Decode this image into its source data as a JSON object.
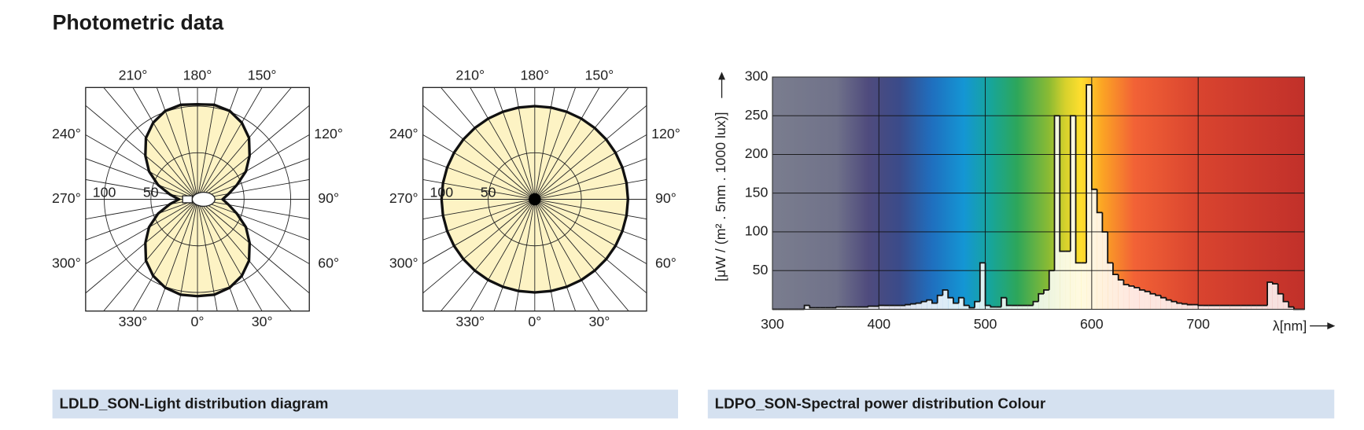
{
  "header": {
    "title": "Photometric data"
  },
  "captions": [
    "LDLD_SON-Light distribution diagram",
    "LDPO_SON-Spectral power distribution Colour"
  ],
  "chart_data": [
    {
      "type": "polar",
      "fill": "#fdf3c4",
      "color": "#111111",
      "rlim": [
        0,
        120
      ],
      "rticks": [
        50,
        100
      ],
      "angle_ticks": [
        {
          "value": 0,
          "label": "0°"
        },
        {
          "value": 30,
          "label": "30°"
        },
        {
          "value": 60,
          "label": "60°"
        },
        {
          "value": 90,
          "label": "90°"
        },
        {
          "value": 120,
          "label": "120°"
        },
        {
          "value": 150,
          "label": "150°"
        },
        {
          "value": 180,
          "label": "180°"
        },
        {
          "value": 210,
          "label": "210°"
        },
        {
          "value": 240,
          "label": "240°"
        },
        {
          "value": 270,
          "label": "270°"
        },
        {
          "value": 300,
          "label": "300°"
        },
        {
          "value": 330,
          "label": "330°"
        }
      ],
      "angles": [
        0,
        10,
        20,
        30,
        40,
        50,
        60,
        70,
        80,
        90,
        100,
        110,
        120,
        130,
        140,
        150,
        160,
        170,
        180,
        190,
        200,
        210,
        220,
        230,
        240,
        250,
        260,
        270,
        280,
        290,
        300,
        310,
        320,
        330,
        340,
        350
      ],
      "values": [
        104,
        104,
        101,
        95,
        86,
        73,
        60,
        45,
        34,
        27,
        34,
        45,
        60,
        73,
        86,
        95,
        101,
        103,
        102,
        103,
        101,
        95,
        86,
        73,
        60,
        45,
        30,
        20,
        30,
        45,
        60,
        73,
        86,
        95,
        101,
        104
      ]
    },
    {
      "type": "polar",
      "fill": "#fdf3c4",
      "color": "#111111",
      "rlim": [
        0,
        120
      ],
      "rticks": [
        50,
        100
      ],
      "angle_ticks": [
        {
          "value": 0,
          "label": "0°"
        },
        {
          "value": 30,
          "label": "30°"
        },
        {
          "value": 60,
          "label": "60°"
        },
        {
          "value": 90,
          "label": "90°"
        },
        {
          "value": 120,
          "label": "120°"
        },
        {
          "value": 150,
          "label": "150°"
        },
        {
          "value": 180,
          "label": "180°"
        },
        {
          "value": 210,
          "label": "210°"
        },
        {
          "value": 240,
          "label": "240°"
        },
        {
          "value": 270,
          "label": "270°"
        },
        {
          "value": 300,
          "label": "300°"
        },
        {
          "value": 330,
          "label": "330°"
        }
      ],
      "angles": [
        0,
        10,
        20,
        30,
        40,
        50,
        60,
        70,
        80,
        90,
        100,
        110,
        120,
        130,
        140,
        150,
        160,
        170,
        180,
        190,
        200,
        210,
        220,
        230,
        240,
        250,
        260,
        270,
        280,
        290,
        300,
        310,
        320,
        330,
        340,
        350
      ],
      "values": [
        100,
        100,
        100,
        100,
        100,
        100,
        100,
        100,
        100,
        100,
        100,
        100,
        100,
        100,
        100,
        100,
        100,
        100,
        100,
        100,
        100,
        100,
        100,
        100,
        100,
        100,
        100,
        100,
        100,
        100,
        100,
        100,
        100,
        100,
        100,
        100
      ]
    },
    {
      "type": "area",
      "ylabel": "[μW / (m² . 5nm . 1000 lux)]",
      "xlabel": "λ[nm]",
      "grid": true,
      "color": "#111111",
      "xlim": [
        300,
        800
      ],
      "ylim": [
        0,
        300
      ],
      "xticks": [
        300,
        400,
        500,
        600,
        700
      ],
      "yticks": [
        50,
        100,
        150,
        200,
        250,
        300
      ],
      "x": [
        300,
        305,
        310,
        315,
        320,
        325,
        330,
        335,
        340,
        345,
        350,
        355,
        360,
        365,
        370,
        375,
        380,
        385,
        390,
        395,
        400,
        405,
        410,
        415,
        420,
        425,
        430,
        435,
        440,
        445,
        450,
        455,
        460,
        465,
        470,
        475,
        480,
        485,
        490,
        495,
        500,
        505,
        510,
        515,
        520,
        525,
        530,
        535,
        540,
        545,
        550,
        555,
        560,
        565,
        570,
        575,
        580,
        585,
        590,
        595,
        600,
        605,
        610,
        615,
        620,
        625,
        630,
        635,
        640,
        645,
        650,
        655,
        660,
        665,
        670,
        675,
        680,
        685,
        690,
        695,
        700,
        705,
        710,
        715,
        720,
        725,
        730,
        735,
        740,
        745,
        750,
        755,
        760,
        765,
        770,
        775,
        780,
        785,
        790,
        795
      ],
      "values": [
        0,
        0,
        0,
        0,
        0,
        0,
        5,
        2,
        2,
        2,
        2,
        2,
        3,
        3,
        3,
        3,
        3,
        3,
        4,
        4,
        5,
        5,
        5,
        5,
        5,
        6,
        7,
        8,
        10,
        12,
        8,
        18,
        25,
        15,
        8,
        15,
        5,
        2,
        10,
        60,
        5,
        3,
        3,
        15,
        5,
        5,
        5,
        5,
        5,
        10,
        20,
        25,
        50,
        250,
        75,
        75,
        250,
        60,
        60,
        290,
        155,
        125,
        100,
        60,
        45,
        38,
        32,
        30,
        28,
        25,
        23,
        20,
        18,
        15,
        12,
        10,
        8,
        7,
        6,
        6,
        5,
        5,
        5,
        5,
        5,
        5,
        5,
        5,
        5,
        5,
        5,
        5,
        5,
        35,
        33,
        20,
        10,
        3,
        0,
        0
      ]
    }
  ]
}
